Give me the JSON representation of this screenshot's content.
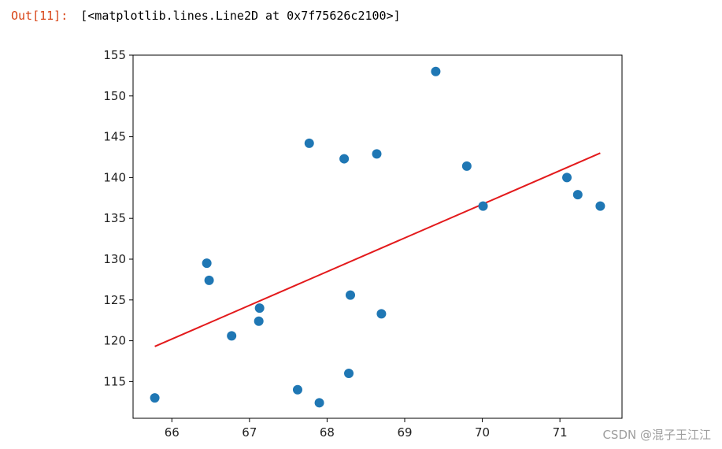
{
  "cell": {
    "prompt": "Out[11]:",
    "output": "[<matplotlib.lines.Line2D at 0x7f75626c2100>]"
  },
  "watermark": "CSDN @混子王江江",
  "chart_data": {
    "type": "scatter",
    "xlim": [
      65.5,
      71.8
    ],
    "ylim": [
      110.5,
      155
    ],
    "xticks": [
      66,
      67,
      68,
      69,
      70,
      71
    ],
    "yticks": [
      115,
      120,
      125,
      130,
      135,
      140,
      145,
      150,
      155
    ],
    "points": {
      "color": "#1f77b4",
      "x": [
        65.78,
        66.45,
        66.48,
        66.77,
        67.12,
        67.13,
        67.62,
        67.77,
        67.9,
        68.22,
        68.28,
        68.3,
        68.64,
        68.7,
        69.4,
        69.8,
        70.01,
        71.09,
        71.23,
        71.52
      ],
      "y": [
        113,
        129.5,
        127.4,
        120.6,
        122.4,
        124,
        114,
        144.2,
        112.4,
        142.3,
        116,
        125.6,
        142.9,
        123.3,
        153,
        141.4,
        136.5,
        140,
        137.9,
        136.5
      ]
    },
    "fit_line": {
      "color": "#e31a1c",
      "x": [
        65.78,
        71.52
      ],
      "y": [
        119.3,
        143
      ]
    },
    "grid": false
  }
}
